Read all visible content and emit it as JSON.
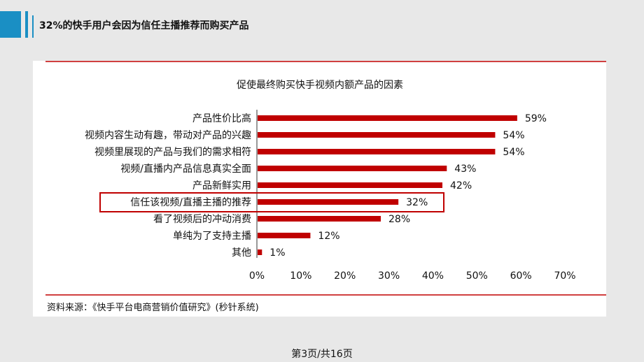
{
  "slide": {
    "title": "32%的快手用户会因为信任主播推荐而购买产品",
    "footer": "第3页/共16页"
  },
  "chart_data": {
    "type": "bar",
    "orientation": "horizontal",
    "title": "促使最终购买快手视频内额产品的因素",
    "categories": [
      "产品性价比高",
      "视频内容生动有趣，带动对产品的兴趣",
      "视频里展现的产品与我们的需求相符",
      "视频/直播内产品信息真实全面",
      "产品新鲜实用",
      "信任该视频/直播主播的推荐",
      "看了视频后的冲动消费",
      "单纯为了支持主播",
      "其他"
    ],
    "values": [
      59,
      54,
      54,
      43,
      42,
      32,
      28,
      12,
      1
    ],
    "value_labels": [
      "59%",
      "54%",
      "54%",
      "43%",
      "42%",
      "32%",
      "28%",
      "12%",
      "1%"
    ],
    "xlim": [
      0,
      70
    ],
    "xticks": [
      0,
      10,
      20,
      30,
      40,
      50,
      60,
      70
    ],
    "xtick_labels": [
      "0%",
      "10%",
      "20%",
      "30%",
      "40%",
      "50%",
      "60%",
      "70%"
    ],
    "highlighted_category": "信任该视频/直播主播的推荐",
    "bar_color": "#c00000",
    "rule_color": "#c00000",
    "source": "资料来源：《快手平台电商营销价值研究》(秒针系统)"
  }
}
